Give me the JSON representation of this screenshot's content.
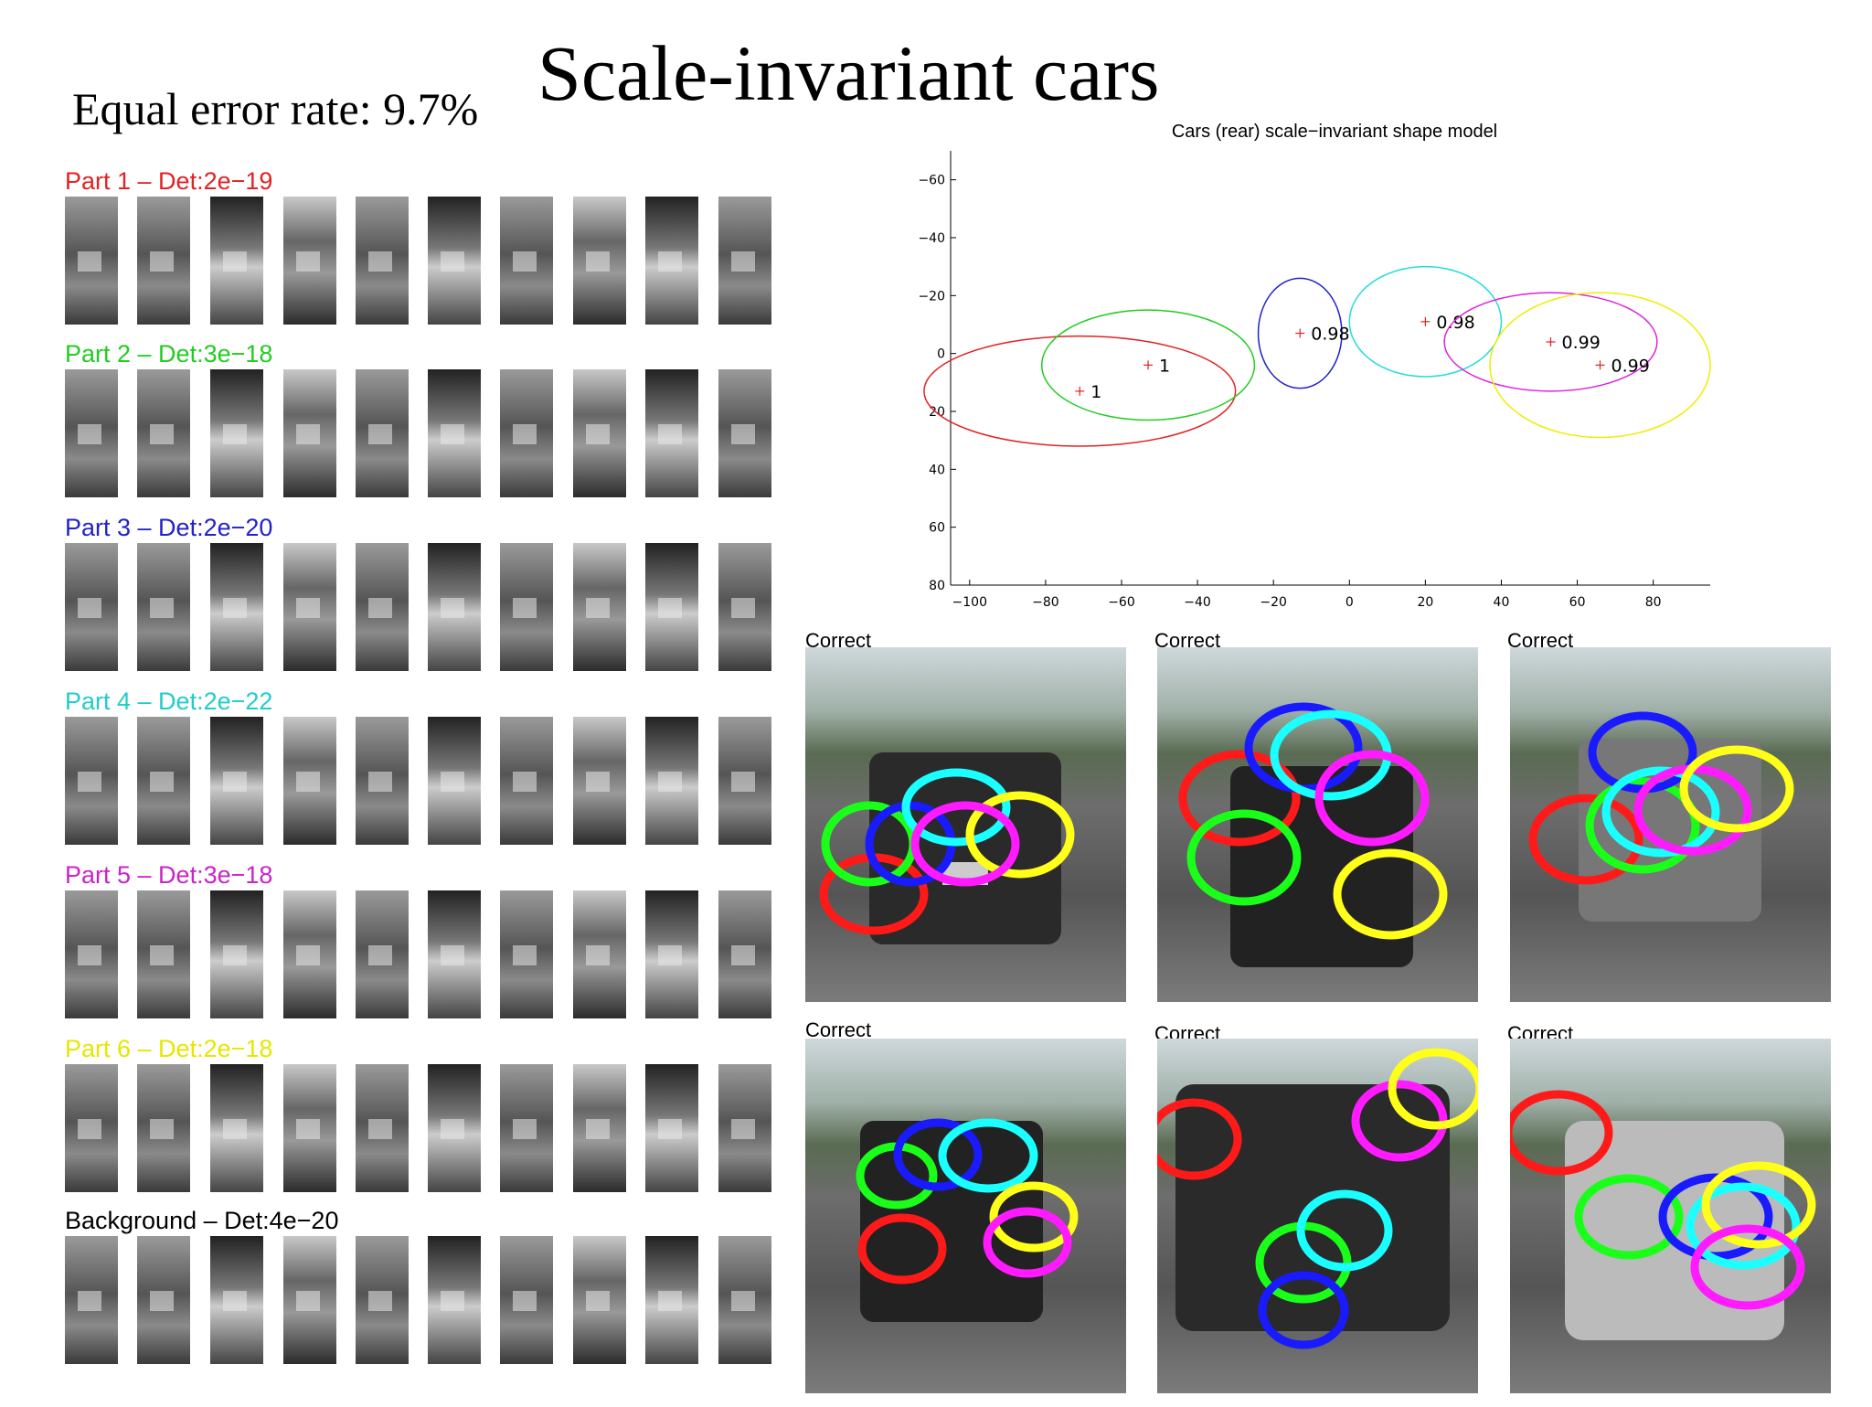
{
  "title": "Scale-invariant cars",
  "equal_error_rate": "Equal error rate: 9.7%",
  "parts": [
    {
      "label": "Part 1 – Det:2e−19",
      "color": "#e32222"
    },
    {
      "label": "Part 2 – Det:3e−18",
      "color": "#22cc22"
    },
    {
      "label": "Part 3 – Det:2e−20",
      "color": "#2222cc"
    },
    {
      "label": "Part 4 – Det:2e−22",
      "color": "#22cccc"
    },
    {
      "label": "Part 5 – Det:3e−18",
      "color": "#cc22cc"
    },
    {
      "label": "Part 6 – Det:2e−18",
      "color": "#e6e600"
    },
    {
      "label": "Background – Det:4e−20",
      "color": "#000000"
    }
  ],
  "photo_caption": "Correct",
  "chart_data": {
    "type": "scatter",
    "title": "Cars (rear) scale−invariant shape model",
    "xlim": [
      -105,
      95
    ],
    "ylim": [
      80,
      -70
    ],
    "x_ticks": [
      -100,
      -80,
      -60,
      -40,
      -20,
      0,
      20,
      40,
      60,
      80
    ],
    "y_ticks": [
      -60,
      -40,
      -20,
      0,
      20,
      40,
      60,
      80
    ],
    "x_tick_labels": [
      "−100",
      "−80",
      "−60",
      "−40",
      "−20",
      "0",
      "20",
      "40",
      "60",
      "80"
    ],
    "y_tick_labels": [
      "−60",
      "−40",
      "−20",
      "0",
      "20",
      "40",
      "60",
      "80"
    ],
    "parts": [
      {
        "x": -71,
        "y": 13,
        "rx": 41,
        "ry": 19,
        "label": "1",
        "color": "#e32222"
      },
      {
        "x": -53,
        "y": 4,
        "rx": 28,
        "ry": 19,
        "label": "1",
        "color": "#22cc22"
      },
      {
        "x": -13,
        "y": -7,
        "rx": 11,
        "ry": 19,
        "label": "0.98",
        "color": "#2222cc"
      },
      {
        "x": 20,
        "y": -11,
        "rx": 20,
        "ry": 19,
        "label": "0.98",
        "color": "#22dddd"
      },
      {
        "x": 53,
        "y": -4,
        "rx": 28,
        "ry": 17,
        "label": "0.99",
        "color": "#dd22dd"
      },
      {
        "x": 66,
        "y": 4,
        "rx": 29,
        "ry": 25,
        "label": "0.99",
        "color": "#eeee00"
      }
    ]
  }
}
